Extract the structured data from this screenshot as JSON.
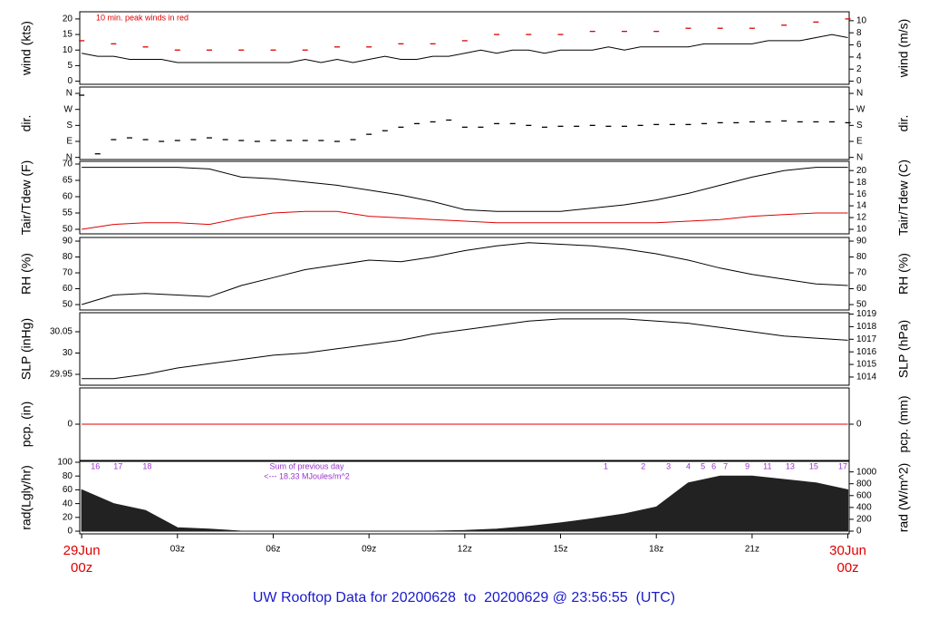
{
  "chart_data": [
    {
      "type": "line",
      "ylabel": "wind (kts)",
      "y2label": "wind (m/s)",
      "annotation": "10 min. peak winds in red",
      "ylim": [
        -1,
        22.3
      ],
      "yticks": [
        0,
        5,
        10,
        15,
        20
      ],
      "y2lim": [
        -0.51,
        11.47
      ],
      "y2ticks": [
        0,
        2,
        4,
        6,
        8,
        10
      ],
      "series": [
        {
          "color": "#000000",
          "x": [
            0,
            0.5,
            1,
            1.5,
            2,
            2.5,
            3,
            3.5,
            4,
            4.5,
            5,
            5.5,
            6,
            6.5,
            7,
            7.5,
            8,
            8.5,
            9,
            9.5,
            10,
            10.5,
            11,
            11.5,
            12,
            12.5,
            13,
            13.5,
            14,
            14.5,
            15,
            15.5,
            16,
            16.5,
            17,
            17.5,
            18,
            18.5,
            19,
            19.5,
            20,
            20.5,
            21,
            21.5,
            22,
            22.5,
            23,
            23.5,
            24
          ],
          "values": [
            9,
            8,
            8,
            7,
            7,
            7,
            6,
            6,
            6,
            6,
            6,
            6,
            6,
            6,
            7,
            6,
            7,
            6,
            7,
            8,
            7,
            7,
            8,
            8,
            9,
            10,
            9,
            10,
            10,
            9,
            10,
            10,
            10,
            11,
            10,
            11,
            11,
            11,
            11,
            12,
            12,
            12,
            12,
            13,
            13,
            13,
            14,
            15,
            14
          ]
        },
        {
          "color": "#e00000",
          "marker": "dash",
          "x": [
            0,
            1,
            2,
            3,
            4,
            5,
            6,
            7,
            8,
            9,
            10,
            11,
            12,
            13,
            14,
            15,
            16,
            17,
            18,
            19,
            20,
            21,
            22,
            23,
            24
          ],
          "values": [
            13,
            12,
            11,
            10,
            10,
            10,
            10,
            10,
            11,
            11,
            12,
            12,
            13,
            15,
            15,
            15,
            16,
            16,
            16,
            17,
            17,
            17,
            18,
            19,
            20
          ]
        }
      ]
    },
    {
      "type": "scatter",
      "ylabel": "dir.",
      "y2label": "dir.",
      "ylim": [
        -12,
        396
      ],
      "yticks": [
        {
          "value": 0,
          "label": "N"
        },
        {
          "value": 90,
          "label": "E"
        },
        {
          "value": 180,
          "label": "S"
        },
        {
          "value": 270,
          "label": "W"
        },
        {
          "value": 360,
          "label": "N"
        }
      ],
      "y2lim": [
        -12,
        396
      ],
      "y2ticks": [
        {
          "value": 0,
          "label": "N"
        },
        {
          "value": 90,
          "label": "E"
        },
        {
          "value": 180,
          "label": "S"
        },
        {
          "value": 270,
          "label": "W"
        },
        {
          "value": 360,
          "label": "N"
        }
      ],
      "series": [
        {
          "color": "#000000",
          "x": [
            0,
            0.5,
            1,
            1.5,
            2,
            2.5,
            3,
            3.5,
            4,
            4.5,
            5,
            5.5,
            6,
            6.5,
            7,
            7.5,
            8,
            8.5,
            9,
            9.5,
            10,
            10.5,
            11,
            11.5,
            12,
            12.5,
            13,
            13.5,
            14,
            14.5,
            15,
            15.5,
            16,
            16.5,
            17,
            17.5,
            18,
            18.5,
            19,
            19.5,
            20,
            20.5,
            21,
            21.5,
            22,
            22.5,
            23,
            23.5,
            24
          ],
          "values": [
            350,
            20,
            100,
            110,
            100,
            90,
            95,
            100,
            110,
            100,
            95,
            90,
            95,
            95,
            95,
            95,
            90,
            100,
            130,
            150,
            170,
            190,
            200,
            210,
            170,
            170,
            190,
            190,
            180,
            170,
            175,
            175,
            180,
            175,
            175,
            180,
            185,
            185,
            185,
            190,
            195,
            195,
            200,
            200,
            205,
            200,
            200,
            200,
            195
          ]
        }
      ]
    },
    {
      "type": "line",
      "ylabel": "Tair/Tdew (F)",
      "y2label": "Tair/Tdew (C)",
      "ylim": [
        48.61,
        70.83
      ],
      "yticks": [
        50,
        55,
        60,
        65,
        70
      ],
      "y2lim": [
        9.23,
        21.57
      ],
      "y2ticks": [
        10,
        12,
        14,
        16,
        18,
        20
      ],
      "series": [
        {
          "color": "#000000",
          "x": [
            0,
            1,
            2,
            3,
            4,
            5,
            6,
            7,
            8,
            9,
            10,
            11,
            12,
            13,
            14,
            15,
            16,
            17,
            18,
            19,
            20,
            21,
            22,
            23,
            24
          ],
          "values": [
            69,
            69,
            69,
            69,
            68.5,
            66,
            65.5,
            64.5,
            63.5,
            62,
            60.5,
            58.5,
            56,
            55.5,
            55.5,
            55.5,
            56.5,
            57.5,
            59,
            61,
            63.5,
            66,
            68,
            69,
            69
          ]
        },
        {
          "color": "#e00000",
          "x": [
            0,
            1,
            2,
            3,
            4,
            5,
            6,
            7,
            8,
            9,
            10,
            11,
            12,
            13,
            14,
            15,
            16,
            17,
            18,
            19,
            20,
            21,
            22,
            23,
            24
          ],
          "values": [
            50,
            51.5,
            52,
            52,
            51.5,
            53.5,
            55,
            55.5,
            55.5,
            54,
            53.5,
            53,
            52.5,
            52,
            52,
            52,
            52,
            52,
            52,
            52.5,
            53,
            54,
            54.5,
            55,
            55
          ]
        }
      ]
    },
    {
      "type": "line",
      "ylabel": "RH (%)",
      "y2label": "RH (%)",
      "ylim": [
        46.6,
        92.3
      ],
      "yticks": [
        50,
        60,
        70,
        80,
        90
      ],
      "y2lim": [
        46.6,
        92.3
      ],
      "y2ticks": [
        50,
        60,
        70,
        80,
        90
      ],
      "series": [
        {
          "color": "#000000",
          "x": [
            0,
            1,
            2,
            3,
            4,
            5,
            6,
            7,
            8,
            9,
            10,
            11,
            12,
            13,
            14,
            15,
            16,
            17,
            18,
            19,
            20,
            21,
            22,
            23,
            24
          ],
          "values": [
            50,
            56,
            57,
            56,
            55,
            62,
            67,
            72,
            75,
            78,
            77,
            80,
            84,
            87,
            89,
            88,
            87,
            85,
            82,
            78,
            73,
            69,
            66,
            63,
            62
          ]
        }
      ]
    },
    {
      "type": "line",
      "ylabel": "SLP (inHg)",
      "y2label": "SLP (hPa)",
      "ylim": [
        29.9245,
        30.0947
      ],
      "yticks": [
        29.95,
        30.0,
        30.05
      ],
      "y2lim": [
        1013.35,
        1019.11
      ],
      "y2ticks": [
        1014,
        1015,
        1016,
        1017,
        1018,
        1019
      ],
      "series": [
        {
          "color": "#000000",
          "x": [
            0,
            1,
            2,
            3,
            4,
            5,
            6,
            7,
            8,
            9,
            10,
            11,
            12,
            13,
            14,
            15,
            16,
            17,
            18,
            19,
            20,
            21,
            22,
            23,
            24
          ],
          "values": [
            29.94,
            29.94,
            29.95,
            29.965,
            29.975,
            29.985,
            29.995,
            30.0,
            30.01,
            30.02,
            30.03,
            30.045,
            30.055,
            30.065,
            30.075,
            30.08,
            30.08,
            30.08,
            30.075,
            30.07,
            30.06,
            30.05,
            30.04,
            30.035,
            30.03
          ]
        }
      ]
    },
    {
      "type": "line",
      "ylabel": "pcp. (in)",
      "y2label": "pcp. (mm)",
      "ylim": [
        -1,
        1
      ],
      "yticks": [
        0
      ],
      "y2lim": [
        -25.4,
        25.4
      ],
      "y2ticks": [
        0
      ],
      "series": [
        {
          "color": "#e00000",
          "x": [
            0,
            24
          ],
          "values": [
            0,
            0
          ]
        }
      ]
    },
    {
      "type": "area",
      "ylabel": "rad(Lgly/hr)",
      "y2label": "rad (W/m^2)",
      "ylim": [
        -3.9,
        101.3
      ],
      "yticks": [
        0,
        20,
        40,
        60,
        80,
        100
      ],
      "y2lim": [
        -45.7,
        1178
      ],
      "y2ticks": [
        0,
        200,
        400,
        600,
        800,
        1000
      ],
      "annotations": [
        "Sum of previous day",
        "<--- 18.33 MJoules/m^2"
      ],
      "annotation_x": 7.05,
      "hour_marks": [
        {
          "x": 0.43,
          "label": "16"
        },
        {
          "x": 1.14,
          "label": "17"
        },
        {
          "x": 2.05,
          "label": "18"
        },
        {
          "x": 16.42,
          "label": "1"
        },
        {
          "x": 17.59,
          "label": "2"
        },
        {
          "x": 18.38,
          "label": "3"
        },
        {
          "x": 19.0,
          "label": "4"
        },
        {
          "x": 19.46,
          "label": "5"
        },
        {
          "x": 19.8,
          "label": "6"
        },
        {
          "x": 20.17,
          "label": "7"
        },
        {
          "x": 20.85,
          "label": "9"
        },
        {
          "x": 21.48,
          "label": "11"
        },
        {
          "x": 22.19,
          "label": "13"
        },
        {
          "x": 22.93,
          "label": "15"
        },
        {
          "x": 23.84,
          "label": "17"
        }
      ],
      "series": [
        {
          "color": "#222222",
          "x": [
            0,
            1,
            2,
            3,
            4,
            5,
            6,
            7,
            8,
            9,
            10,
            11,
            12,
            13,
            14,
            15,
            16,
            17,
            18,
            19,
            20,
            21,
            22,
            23,
            24
          ],
          "values": [
            60,
            40,
            30,
            5,
            3,
            0,
            0,
            0,
            0,
            0,
            0,
            0,
            1,
            3,
            7,
            12,
            18,
            25,
            35,
            70,
            80,
            80,
            75,
            70,
            60
          ]
        }
      ]
    }
  ],
  "x_axis": {
    "xlim": [
      -0.06,
      24.04
    ],
    "xticks": [
      {
        "value": 3,
        "label": "03z"
      },
      {
        "value": 6,
        "label": "06z"
      },
      {
        "value": 9,
        "label": "09z"
      },
      {
        "value": 12,
        "label": "12z"
      },
      {
        "value": 15,
        "label": "15z"
      },
      {
        "value": 18,
        "label": "18z"
      },
      {
        "value": 21,
        "label": "21z"
      }
    ],
    "start": {
      "value": 0,
      "day": "29Jun",
      "hour": "00z"
    },
    "end": {
      "value": 24,
      "day": "30Jun",
      "hour": "00z"
    }
  },
  "footer": "UW Rooftop Data for 20200628  to  20200629 @ 23:56:55  (UTC)"
}
